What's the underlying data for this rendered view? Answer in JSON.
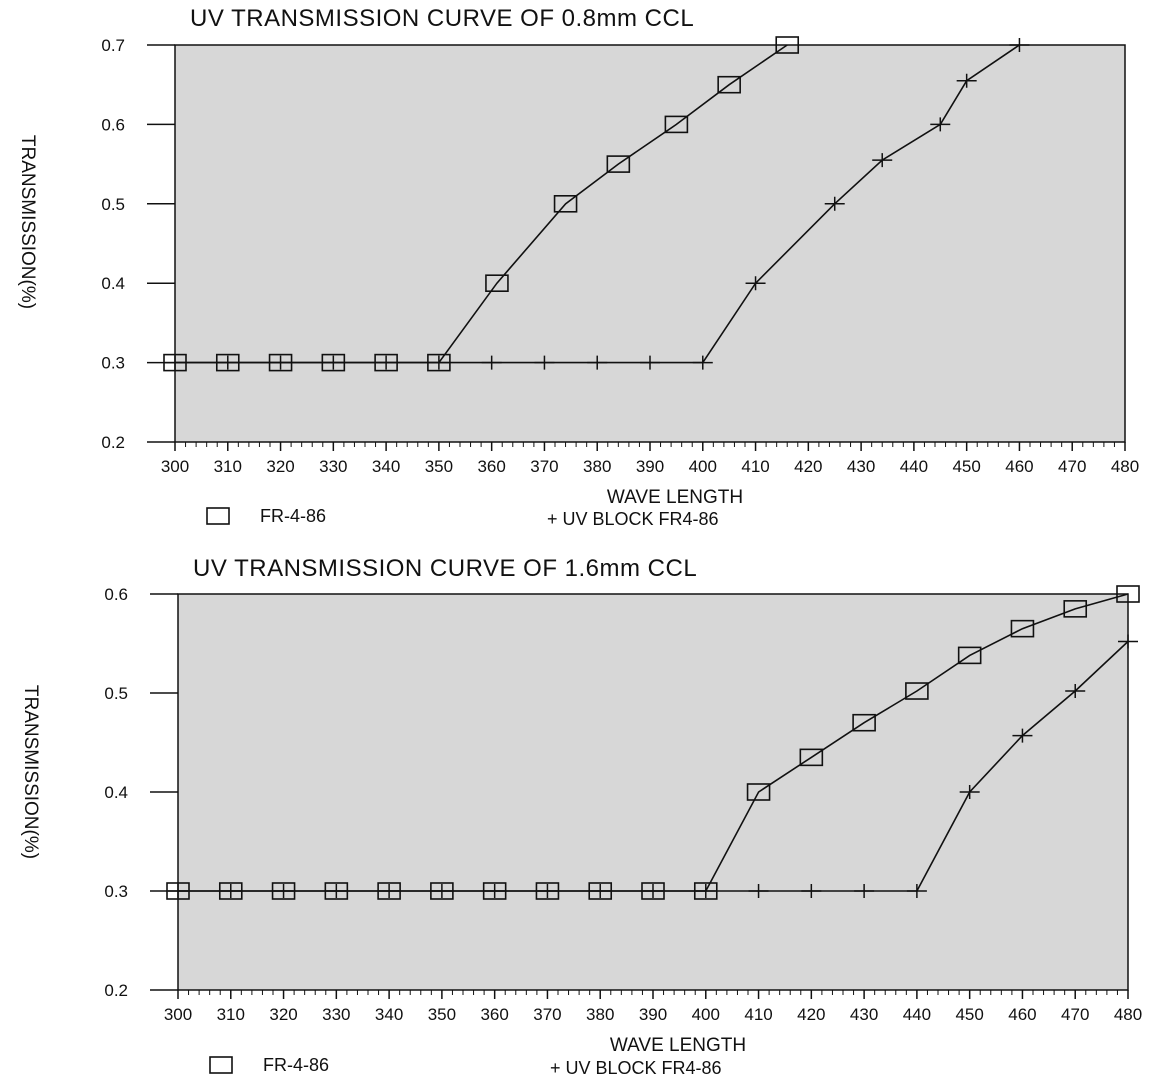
{
  "colors": {
    "plot_background": "#d7d7d7",
    "line": "#111111",
    "page": "#ffffff"
  },
  "chart_data": [
    {
      "type": "line",
      "title": "UV TRANSMISSION CURVE OF 0.8mm CCL",
      "xlabel": "WAVE LENGTH",
      "ylabel": "TRANSMISSION(%)",
      "xlim": [
        300,
        480
      ],
      "ylim": [
        0.2,
        0.7
      ],
      "xticks": [
        "300",
        "310",
        "320",
        "330",
        "340",
        "350",
        "360",
        "370",
        "380",
        "390",
        "400",
        "410",
        "420",
        "430",
        "440",
        "450",
        "460",
        "470",
        "480"
      ],
      "yticks": [
        "0.2",
        "0.3",
        "0.4",
        "0.5",
        "0.6",
        "0.7"
      ],
      "grid": false,
      "legend_position": "bottom",
      "series": [
        {
          "name": "FR-4-86",
          "marker": "square",
          "x": [
            300,
            310,
            320,
            330,
            340,
            350,
            361,
            374,
            384,
            395,
            405,
            416
          ],
          "y": [
            0.3,
            0.3,
            0.3,
            0.3,
            0.3,
            0.3,
            0.4,
            0.5,
            0.55,
            0.6,
            0.65,
            0.7
          ]
        },
        {
          "name": "UV BLOCK FR4-86",
          "marker": "plus",
          "legend_prefix": "+",
          "x": [
            300,
            310,
            320,
            330,
            340,
            350,
            360,
            370,
            380,
            390,
            400,
            410,
            425,
            434,
            445,
            450,
            460
          ],
          "y": [
            0.3,
            0.3,
            0.3,
            0.3,
            0.3,
            0.3,
            0.3,
            0.3,
            0.3,
            0.3,
            0.3,
            0.4,
            0.5,
            0.555,
            0.6,
            0.655,
            0.7
          ]
        }
      ]
    },
    {
      "type": "line",
      "title": "UV TRANSMISSION CURVE OF 1.6mm CCL",
      "xlabel": "WAVE LENGTH",
      "ylabel": "TRANSMISSION(%)",
      "xlim": [
        300,
        480
      ],
      "ylim": [
        0.2,
        0.6
      ],
      "xticks": [
        "300",
        "310",
        "320",
        "330",
        "340",
        "350",
        "360",
        "370",
        "380",
        "390",
        "400",
        "410",
        "420",
        "430",
        "440",
        "450",
        "460",
        "470",
        "480"
      ],
      "yticks": [
        "0.2",
        "0.3",
        "0.4",
        "0.5",
        "0.6"
      ],
      "grid": false,
      "legend_position": "bottom",
      "series": [
        {
          "name": "FR-4-86",
          "marker": "square",
          "x": [
            300,
            310,
            320,
            330,
            340,
            350,
            360,
            370,
            380,
            390,
            400,
            410,
            420,
            430,
            440,
            450,
            460,
            470,
            480
          ],
          "y": [
            0.3,
            0.3,
            0.3,
            0.3,
            0.3,
            0.3,
            0.3,
            0.3,
            0.3,
            0.3,
            0.3,
            0.4,
            0.435,
            0.47,
            0.502,
            0.538,
            0.565,
            0.585,
            0.6
          ]
        },
        {
          "name": "UV BLOCK FR4-86",
          "marker": "plus",
          "legend_prefix": "+",
          "x": [
            300,
            310,
            320,
            330,
            340,
            350,
            360,
            370,
            380,
            390,
            400,
            410,
            420,
            430,
            440,
            450,
            460,
            470,
            480
          ],
          "y": [
            0.3,
            0.3,
            0.3,
            0.3,
            0.3,
            0.3,
            0.3,
            0.3,
            0.3,
            0.3,
            0.3,
            0.3,
            0.3,
            0.3,
            0.3,
            0.4,
            0.457,
            0.502,
            0.552
          ]
        }
      ]
    }
  ]
}
